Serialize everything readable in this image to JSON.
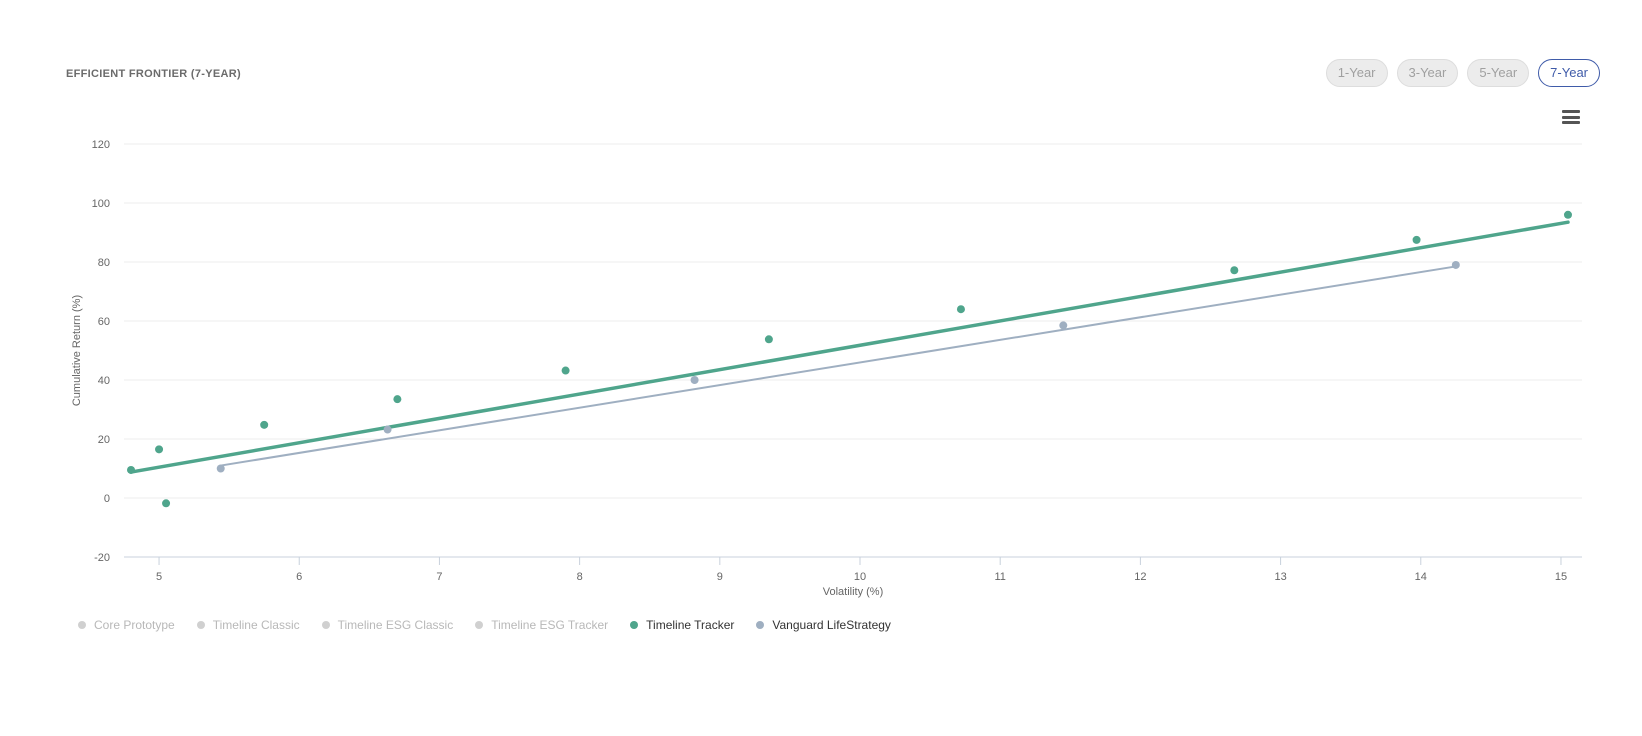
{
  "header": {
    "title": "EFFICIENT FRONTIER (7-YEAR)",
    "periods": [
      {
        "label": "1-Year",
        "active": false
      },
      {
        "label": "3-Year",
        "active": false
      },
      {
        "label": "5-Year",
        "active": false
      },
      {
        "label": "7-Year",
        "active": true
      }
    ]
  },
  "colors": {
    "timeline_tracker": "#4fa58c",
    "vanguard": "#9fafc1",
    "legend_inactive_dot": "#d0d0d0",
    "legend_inactive_text": "#b8b8b8",
    "legend_active_text": "#333333",
    "active_tab": "#3f5ba9"
  },
  "chart_data": {
    "type": "scatter",
    "title": "EFFICIENT FRONTIER (7-YEAR)",
    "xlabel": "Volatility (%)",
    "ylabel": "Cumulative Return (%)",
    "xlim": [
      4.75,
      15.15
    ],
    "ylim": [
      -20,
      120
    ],
    "xticks": [
      5,
      6,
      7,
      8,
      9,
      10,
      11,
      12,
      13,
      14,
      15
    ],
    "yticks": [
      -20,
      0,
      20,
      40,
      60,
      80,
      100,
      120
    ],
    "grid": true,
    "legend_position": "bottom-left",
    "legend": [
      {
        "name": "Core Prototype",
        "visible": false
      },
      {
        "name": "Timeline Classic",
        "visible": false
      },
      {
        "name": "Timeline ESG Classic",
        "visible": false
      },
      {
        "name": "Timeline ESG Tracker",
        "visible": false
      },
      {
        "name": "Timeline Tracker",
        "visible": true
      },
      {
        "name": "Vanguard LifeStrategy",
        "visible": true
      }
    ],
    "series": [
      {
        "name": "Timeline Tracker",
        "color": "#4fa58c",
        "points": [
          [
            4.8,
            9.5
          ],
          [
            5.0,
            16.5
          ],
          [
            5.05,
            -1.8
          ],
          [
            5.75,
            24.8
          ],
          [
            6.7,
            33.5
          ],
          [
            7.9,
            43.2
          ],
          [
            9.35,
            53.8
          ],
          [
            10.72,
            64.0
          ],
          [
            12.67,
            77.2
          ],
          [
            13.97,
            87.5
          ],
          [
            15.05,
            96.0
          ]
        ],
        "fit": [
          [
            4.8,
            8.8
          ],
          [
            15.05,
            93.5
          ]
        ],
        "fit_width": 3.5
      },
      {
        "name": "Vanguard LifeStrategy",
        "color": "#9fafc1",
        "points": [
          [
            5.44,
            10.0
          ],
          [
            6.63,
            23.2
          ],
          [
            8.82,
            40.0
          ],
          [
            11.45,
            58.5
          ],
          [
            14.25,
            79.0
          ]
        ],
        "fit": [
          [
            5.44,
            11.0
          ],
          [
            14.25,
            78.5
          ]
        ],
        "fit_width": 2
      }
    ]
  }
}
